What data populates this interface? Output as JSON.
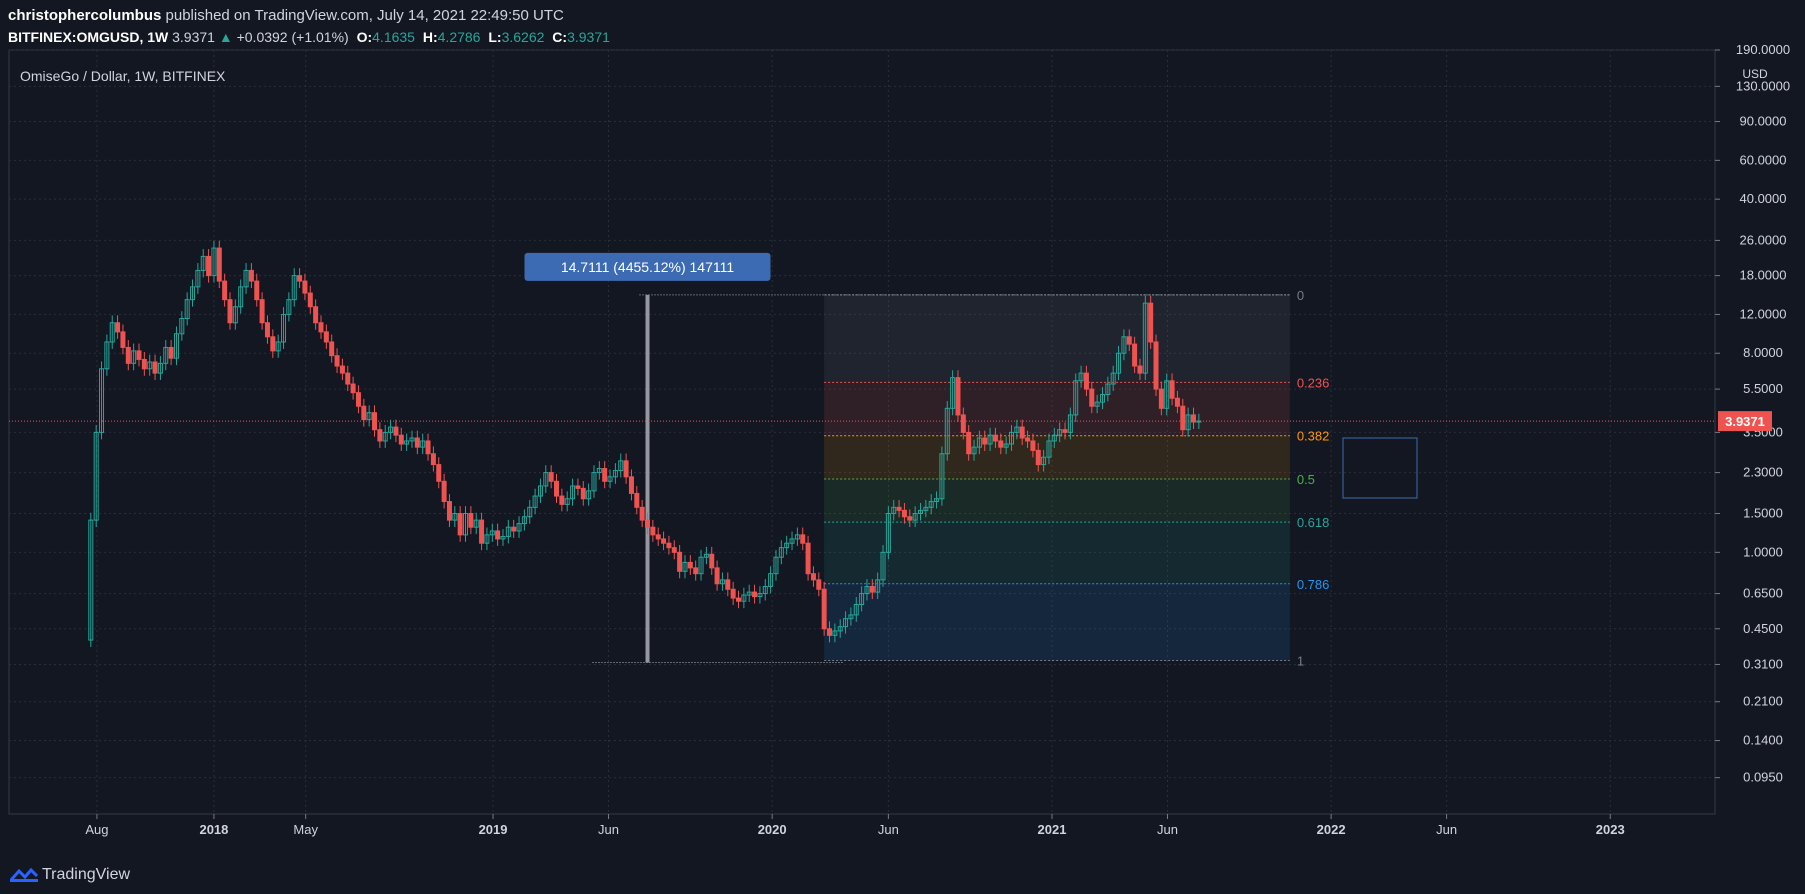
{
  "header": {
    "author": "christophercolumbus",
    "published": "published on TradingView.com, July 14, 2021 22:49:50 UTC",
    "symbol": "BITFINEX:OMGUSD, 1W",
    "last": "3.9371",
    "change": "+0.0392 (+1.01%)",
    "o_label": "O:",
    "o": "4.1635",
    "h_label": "H:",
    "h": "4.2786",
    "l_label": "L:",
    "l": "3.6262",
    "c_label": "C:",
    "c": "3.9371"
  },
  "footer": {
    "brand": "TradingView"
  },
  "colors": {
    "background": "#131722",
    "grid": "#2a2e39",
    "up": "#26a69a",
    "down": "#ef5350",
    "price_line": "#ef5350",
    "measure_box": "#3d6bb3"
  },
  "chart_data": {
    "type": "candlestick",
    "title": "OmiseGo / Dollar, 1W, BITFINEX",
    "currency": "USD",
    "y_scale": "log",
    "ylim": [
      0.065,
      190
    ],
    "y_ticks": [
      "190.0000",
      "130.0000",
      "90.0000",
      "60.0000",
      "40.0000",
      "26.0000",
      "18.0000",
      "12.0000",
      "8.0000",
      "5.5000",
      "3.5000",
      "2.3000",
      "1.5000",
      "1.0000",
      "0.6500",
      "0.4500",
      "0.3100",
      "0.2100",
      "0.1400",
      "0.0950"
    ],
    "x_ticks": [
      {
        "label": "Aug",
        "date": "2017-08-01",
        "bold": false
      },
      {
        "label": "2018",
        "date": "2018-01-01",
        "bold": true
      },
      {
        "label": "May",
        "date": "2018-05-01",
        "bold": false
      },
      {
        "label": "2019",
        "date": "2019-01-01",
        "bold": true
      },
      {
        "label": "Jun",
        "date": "2019-06-01",
        "bold": false
      },
      {
        "label": "2020",
        "date": "2020-01-01",
        "bold": true
      },
      {
        "label": "Jun",
        "date": "2020-06-01",
        "bold": false
      },
      {
        "label": "2021",
        "date": "2021-01-01",
        "bold": true
      },
      {
        "label": "Jun",
        "date": "2021-06-01",
        "bold": false
      },
      {
        "label": "2022",
        "date": "2022-01-01",
        "bold": true
      },
      {
        "label": "Jun",
        "date": "2022-06-01",
        "bold": false
      },
      {
        "label": "2023",
        "date": "2023-01-01",
        "bold": true
      }
    ],
    "x_range": [
      "2017-04-08",
      "2023-05-18"
    ],
    "last_price": 3.9371,
    "price_path": [
      [
        "2017-07-17",
        0.4
      ],
      [
        "2017-07-24",
        1.4
      ],
      [
        "2017-07-31",
        3.5
      ],
      [
        "2017-08-07",
        6.8
      ],
      [
        "2017-08-14",
        9.0
      ],
      [
        "2017-08-21",
        11.0
      ],
      [
        "2017-08-28",
        10.0
      ],
      [
        "2017-09-04",
        8.5
      ],
      [
        "2017-09-11",
        7.2
      ],
      [
        "2017-09-18",
        8.2
      ],
      [
        "2017-09-25",
        7.5
      ],
      [
        "2017-10-02",
        6.8
      ],
      [
        "2017-10-09",
        7.3
      ],
      [
        "2017-10-16",
        6.5
      ],
      [
        "2017-10-23",
        7.2
      ],
      [
        "2017-10-30",
        8.5
      ],
      [
        "2017-11-06",
        7.6
      ],
      [
        "2017-11-13",
        9.8
      ],
      [
        "2017-11-20",
        11.5
      ],
      [
        "2017-11-27",
        14.0
      ],
      [
        "2017-12-04",
        16.0
      ],
      [
        "2017-12-11",
        19.0
      ],
      [
        "2017-12-18",
        22.0
      ],
      [
        "2017-12-25",
        18.0
      ],
      [
        "2018-01-01",
        24.0
      ],
      [
        "2018-01-08",
        17.0
      ],
      [
        "2018-01-15",
        14.0
      ],
      [
        "2018-01-22",
        11.0
      ],
      [
        "2018-01-29",
        13.0
      ],
      [
        "2018-02-05",
        16.0
      ],
      [
        "2018-02-12",
        19.0
      ],
      [
        "2018-02-19",
        17.0
      ],
      [
        "2018-02-26",
        14.0
      ],
      [
        "2018-03-05",
        11.0
      ],
      [
        "2018-03-12",
        9.5
      ],
      [
        "2018-03-19",
        8.2
      ],
      [
        "2018-03-26",
        9.0
      ],
      [
        "2018-04-02",
        12.0
      ],
      [
        "2018-04-09",
        14.0
      ],
      [
        "2018-04-16",
        18.0
      ],
      [
        "2018-04-23",
        17.0
      ],
      [
        "2018-04-30",
        15.0
      ],
      [
        "2018-05-07",
        13.0
      ],
      [
        "2018-05-14",
        11.0
      ],
      [
        "2018-05-21",
        10.0
      ],
      [
        "2018-05-28",
        9.0
      ],
      [
        "2018-06-04",
        7.8
      ],
      [
        "2018-06-11",
        7.0
      ],
      [
        "2018-06-18",
        6.5
      ],
      [
        "2018-06-25",
        5.8
      ],
      [
        "2018-07-02",
        5.3
      ],
      [
        "2018-07-09",
        4.6
      ],
      [
        "2018-07-16",
        4.0
      ],
      [
        "2018-07-23",
        4.3
      ],
      [
        "2018-07-30",
        3.6
      ],
      [
        "2018-08-06",
        3.2
      ],
      [
        "2018-08-13",
        3.5
      ],
      [
        "2018-08-20",
        3.7
      ],
      [
        "2018-08-27",
        3.4
      ],
      [
        "2018-09-03",
        3.1
      ],
      [
        "2018-09-10",
        3.2
      ],
      [
        "2018-09-17",
        3.3
      ],
      [
        "2018-09-24",
        3.0
      ],
      [
        "2018-10-01",
        3.2
      ],
      [
        "2018-10-08",
        2.8
      ],
      [
        "2018-10-15",
        2.5
      ],
      [
        "2018-10-22",
        2.1
      ],
      [
        "2018-10-29",
        1.7
      ],
      [
        "2018-11-05",
        1.4
      ],
      [
        "2018-11-12",
        1.5
      ],
      [
        "2018-11-19",
        1.2
      ],
      [
        "2018-11-26",
        1.5
      ],
      [
        "2018-12-03",
        1.3
      ],
      [
        "2018-12-10",
        1.4
      ],
      [
        "2018-12-17",
        1.1
      ],
      [
        "2018-12-24",
        1.2
      ],
      [
        "2018-12-31",
        1.25
      ],
      [
        "2019-01-07",
        1.15
      ],
      [
        "2019-01-14",
        1.18
      ],
      [
        "2019-01-21",
        1.3
      ],
      [
        "2019-01-28",
        1.25
      ],
      [
        "2019-02-04",
        1.35
      ],
      [
        "2019-02-11",
        1.45
      ],
      [
        "2019-02-18",
        1.6
      ],
      [
        "2019-02-25",
        1.8
      ],
      [
        "2019-03-04",
        2.0
      ],
      [
        "2019-03-11",
        2.3
      ],
      [
        "2019-03-18",
        2.1
      ],
      [
        "2019-03-25",
        1.8
      ],
      [
        "2019-04-01",
        1.65
      ],
      [
        "2019-04-08",
        1.75
      ],
      [
        "2019-04-15",
        2.0
      ],
      [
        "2019-04-22",
        1.95
      ],
      [
        "2019-04-29",
        1.75
      ],
      [
        "2019-05-06",
        1.9
      ],
      [
        "2019-05-13",
        2.3
      ],
      [
        "2019-05-20",
        2.4
      ],
      [
        "2019-05-27",
        2.1
      ],
      [
        "2019-06-03",
        2.2
      ],
      [
        "2019-06-10",
        2.35
      ],
      [
        "2019-06-17",
        2.6
      ],
      [
        "2019-06-24",
        2.2
      ],
      [
        "2019-07-01",
        1.85
      ],
      [
        "2019-07-08",
        1.6
      ],
      [
        "2019-07-15",
        1.4
      ],
      [
        "2019-07-22",
        1.3
      ],
      [
        "2019-07-29",
        1.2
      ],
      [
        "2019-08-05",
        1.15
      ],
      [
        "2019-08-12",
        1.1
      ],
      [
        "2019-08-19",
        1.05
      ],
      [
        "2019-08-26",
        1.0
      ],
      [
        "2019-09-02",
        0.82
      ],
      [
        "2019-09-09",
        0.9
      ],
      [
        "2019-09-16",
        0.85
      ],
      [
        "2019-09-23",
        0.8
      ],
      [
        "2019-09-30",
        0.95
      ],
      [
        "2019-10-07",
        0.98
      ],
      [
        "2019-10-14",
        0.85
      ],
      [
        "2019-10-21",
        0.72
      ],
      [
        "2019-10-28",
        0.75
      ],
      [
        "2019-11-04",
        0.68
      ],
      [
        "2019-11-11",
        0.62
      ],
      [
        "2019-11-18",
        0.6
      ],
      [
        "2019-11-25",
        0.64
      ],
      [
        "2019-12-02",
        0.66
      ],
      [
        "2019-12-09",
        0.63
      ],
      [
        "2019-12-16",
        0.65
      ],
      [
        "2019-12-23",
        0.7
      ],
      [
        "2019-12-30",
        0.8
      ],
      [
        "2020-01-06",
        0.95
      ],
      [
        "2020-01-13",
        1.05
      ],
      [
        "2020-01-20",
        1.1
      ],
      [
        "2020-01-27",
        1.15
      ],
      [
        "2020-02-03",
        1.2
      ],
      [
        "2020-02-10",
        1.1
      ],
      [
        "2020-02-17",
        0.8
      ],
      [
        "2020-02-24",
        0.75
      ],
      [
        "2020-03-02",
        0.68
      ],
      [
        "2020-03-09",
        0.45
      ],
      [
        "2020-03-16",
        0.42
      ],
      [
        "2020-03-23",
        0.44
      ],
      [
        "2020-03-30",
        0.46
      ],
      [
        "2020-04-06",
        0.5
      ],
      [
        "2020-04-13",
        0.52
      ],
      [
        "2020-04-20",
        0.58
      ],
      [
        "2020-04-27",
        0.65
      ],
      [
        "2020-05-04",
        0.7
      ],
      [
        "2020-05-11",
        0.66
      ],
      [
        "2020-05-18",
        0.75
      ],
      [
        "2020-05-25",
        1.0
      ],
      [
        "2020-06-01",
        1.5
      ],
      [
        "2020-06-08",
        1.6
      ],
      [
        "2020-06-15",
        1.55
      ],
      [
        "2020-06-22",
        1.45
      ],
      [
        "2020-06-29",
        1.4
      ],
      [
        "2020-07-06",
        1.5
      ],
      [
        "2020-07-13",
        1.55
      ],
      [
        "2020-07-20",
        1.6
      ],
      [
        "2020-07-27",
        1.7
      ],
      [
        "2020-08-03",
        1.75
      ],
      [
        "2020-08-10",
        2.8
      ],
      [
        "2020-08-17",
        4.5
      ],
      [
        "2020-08-24",
        6.2
      ],
      [
        "2020-08-31",
        4.2
      ],
      [
        "2020-09-07",
        3.5
      ],
      [
        "2020-09-14",
        2.8
      ],
      [
        "2020-09-21",
        3.0
      ],
      [
        "2020-09-28",
        3.3
      ],
      [
        "2020-10-05",
        3.1
      ],
      [
        "2020-10-12",
        3.4
      ],
      [
        "2020-10-19",
        3.2
      ],
      [
        "2020-10-26",
        3.0
      ],
      [
        "2020-11-02",
        3.1
      ],
      [
        "2020-11-09",
        3.5
      ],
      [
        "2020-11-16",
        3.7
      ],
      [
        "2020-11-23",
        3.3
      ],
      [
        "2020-11-30",
        3.2
      ],
      [
        "2020-12-07",
        2.9
      ],
      [
        "2020-12-14",
        2.5
      ],
      [
        "2020-12-21",
        2.7
      ],
      [
        "2020-12-28",
        3.2
      ],
      [
        "2021-01-04",
        3.4
      ],
      [
        "2021-01-11",
        3.6
      ],
      [
        "2021-01-18",
        3.5
      ],
      [
        "2021-01-25",
        4.2
      ],
      [
        "2021-02-01",
        6.0
      ],
      [
        "2021-02-08",
        6.5
      ],
      [
        "2021-02-15",
        5.5
      ],
      [
        "2021-02-22",
        4.6
      ],
      [
        "2021-03-01",
        4.8
      ],
      [
        "2021-03-08",
        5.2
      ],
      [
        "2021-03-15",
        5.8
      ],
      [
        "2021-03-22",
        6.5
      ],
      [
        "2021-03-29",
        8.0
      ],
      [
        "2021-04-05",
        9.5
      ],
      [
        "2021-04-12",
        8.8
      ],
      [
        "2021-04-19",
        7.0
      ],
      [
        "2021-04-26",
        6.5
      ],
      [
        "2021-05-03",
        13.5
      ],
      [
        "2021-05-10",
        9.0
      ],
      [
        "2021-05-17",
        5.5
      ],
      [
        "2021-05-24",
        4.5
      ],
      [
        "2021-05-31",
        6.0
      ],
      [
        "2021-06-07",
        5.0
      ],
      [
        "2021-06-14",
        4.6
      ],
      [
        "2021-06-21",
        3.6
      ],
      [
        "2021-06-28",
        4.2
      ],
      [
        "2021-07-05",
        3.9
      ],
      [
        "2021-07-12",
        3.94
      ]
    ],
    "fib_levels": [
      {
        "label": "0",
        "ratio": 0,
        "price": 14.7111,
        "color": "#787b86"
      },
      {
        "label": "0.236",
        "ratio": 0.236,
        "price": 5.9,
        "color": "#ef5350"
      },
      {
        "label": "0.382",
        "ratio": 0.382,
        "price": 3.38,
        "color": "#ff9800"
      },
      {
        "label": "0.5",
        "ratio": 0.5,
        "price": 2.15,
        "color": "#4caf50"
      },
      {
        "label": "0.618",
        "ratio": 0.618,
        "price": 1.37,
        "color": "#26a69a"
      },
      {
        "label": "0.786",
        "ratio": 0.786,
        "price": 0.72,
        "color": "#2196f3"
      },
      {
        "label": "1",
        "ratio": 1,
        "price": 0.323,
        "color": "#787b86"
      }
    ],
    "fib_start": "2020-03-09",
    "fib_end": "2021-11-08",
    "measure": {
      "label": "14.7111 (4455.12%) 147111",
      "date": "2019-07-22",
      "from_price": 0.323,
      "to_price": 14.7111
    }
  }
}
